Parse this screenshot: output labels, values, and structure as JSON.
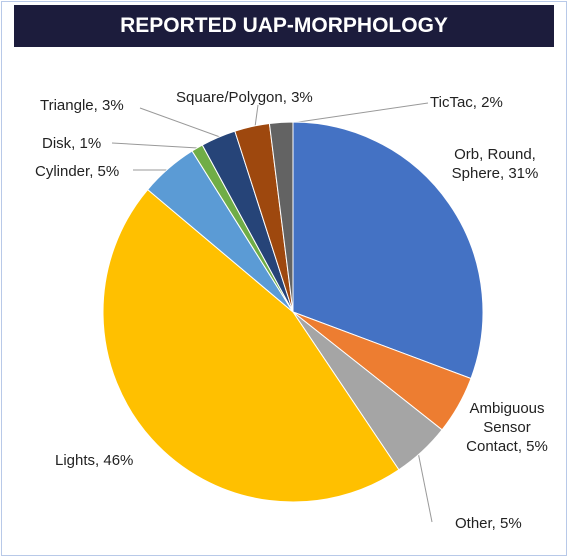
{
  "chart_data": {
    "type": "pie",
    "title": "REPORTED UAP-MORPHOLOGY",
    "values": [
      31,
      5,
      5,
      46,
      5,
      1,
      3,
      3,
      2
    ],
    "value_labels": [
      "Orb, Round, Sphere, 31%",
      "Ambiguous Sensor Contact, 5%",
      "Other, 5%",
      "Lights, 46%",
      "Cylinder, 5%",
      "Disk, 1%",
      "Triangle, 3%",
      "Square/Polygon, 3%",
      "TicTac, 2%"
    ],
    "colors": [
      "#4472c4",
      "#ed7d31",
      "#a5a5a5",
      "#ffc000",
      "#5b9bd5",
      "#70ad47",
      "#264478",
      "#9e480e",
      "#636363"
    ]
  }
}
